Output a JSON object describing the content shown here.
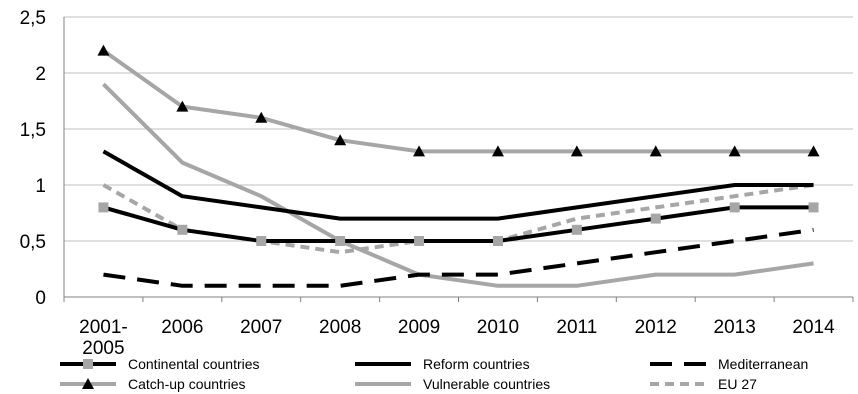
{
  "chart_data": {
    "type": "line",
    "title": "",
    "xlabel": "",
    "ylabel": "",
    "categories": [
      "2001-2005",
      "2006",
      "2007",
      "2008",
      "2009",
      "2010",
      "2011",
      "2012",
      "2013",
      "2014"
    ],
    "category_lines": [
      [
        "2001-",
        "2005"
      ],
      [
        "2006"
      ],
      [
        "2007"
      ],
      [
        "2008"
      ],
      [
        "2009"
      ],
      [
        "2010"
      ],
      [
        "2011"
      ],
      [
        "2012"
      ],
      [
        "2013"
      ],
      [
        "2014"
      ]
    ],
    "y_ticks": [
      "0",
      "0,5",
      "1",
      "1,5",
      "2",
      "2,5"
    ],
    "ylim": [
      0,
      2.5
    ],
    "grid": "horizontal",
    "legend_position": "bottom",
    "series": [
      {
        "name": "Continental countries",
        "values": [
          0.8,
          0.6,
          0.5,
          0.5,
          0.5,
          0.5,
          0.6,
          0.7,
          0.8,
          0.8
        ],
        "color": "#000000",
        "secondary_color": "#a6a6a6",
        "style": "solid",
        "marker": "square"
      },
      {
        "name": "Reform countries",
        "values": [
          1.3,
          0.9,
          0.8,
          0.7,
          0.7,
          0.7,
          0.8,
          0.9,
          1.0,
          1.0
        ],
        "color": "#000000",
        "style": "solid",
        "marker": "none"
      },
      {
        "name": "Mediterranean",
        "values": [
          0.2,
          0.1,
          0.1,
          0.1,
          0.2,
          0.2,
          0.3,
          0.4,
          0.5,
          0.6
        ],
        "color": "#000000",
        "style": "long-dash",
        "marker": "none"
      },
      {
        "name": "Catch-up countries",
        "values": [
          2.2,
          1.7,
          1.6,
          1.4,
          1.3,
          1.3,
          1.3,
          1.3,
          1.3,
          1.3
        ],
        "color": "#a6a6a6",
        "marker_color": "#000000",
        "style": "solid",
        "marker": "triangle"
      },
      {
        "name": "Vulnerable countries",
        "values": [
          1.9,
          1.2,
          0.9,
          0.5,
          0.2,
          0.1,
          0.1,
          0.2,
          0.2,
          0.3
        ],
        "color": "#a6a6a6",
        "style": "solid",
        "marker": "none"
      },
      {
        "name": "EU 27",
        "values": [
          1.0,
          0.6,
          0.5,
          0.4,
          0.5,
          0.5,
          0.7,
          0.8,
          0.9,
          1.0
        ],
        "color": "#a6a6a6",
        "style": "short-dash",
        "marker": "none"
      }
    ]
  }
}
